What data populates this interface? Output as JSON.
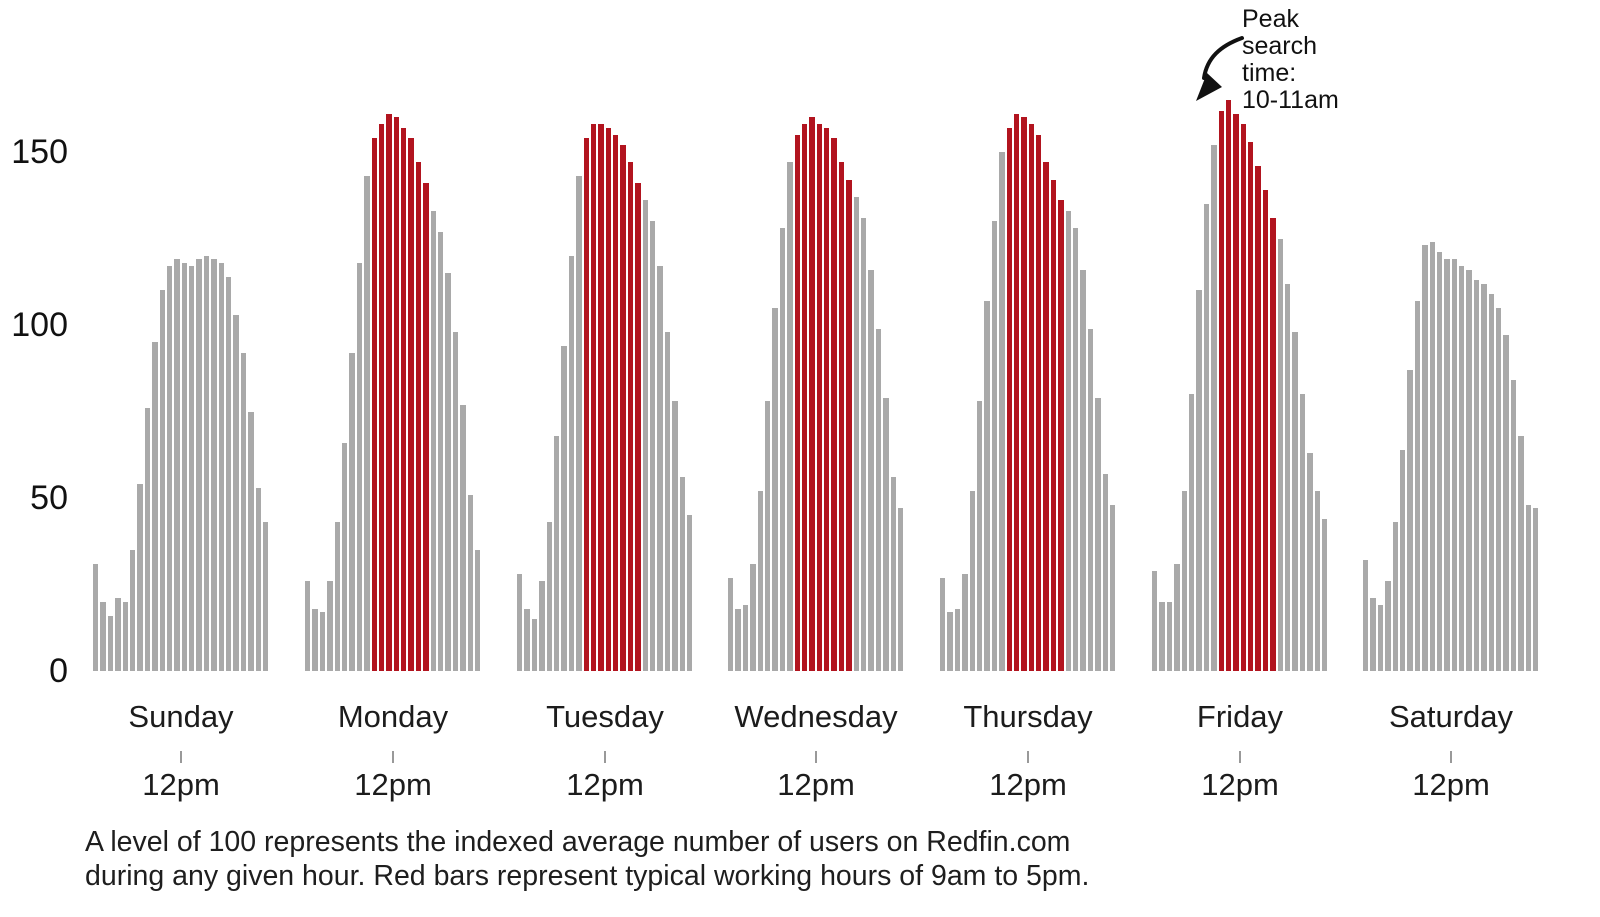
{
  "annotation": {
    "text": "Peak search time: 10-11am",
    "lines": [
      "Peak",
      "search",
      "time:",
      "10-11am"
    ]
  },
  "footnote": {
    "line1": "A level of 100 represents the indexed average number of users on Redfin.com",
    "line2": "during any given hour. Red bars represent typical working hours of 9am to 5pm."
  },
  "y_axis": {
    "tick_labels": [
      "150",
      "100",
      "50",
      "0"
    ],
    "tick_values": [
      150,
      100,
      50,
      0
    ]
  },
  "x_axis": {
    "noon_label": "12pm",
    "day_labels": [
      "Sunday",
      "Monday",
      "Tuesday",
      "Wednesday",
      "Thursday",
      "Friday",
      "Saturday"
    ]
  },
  "colors": {
    "bar_gray": "#a9a9a9",
    "bar_red": "#b2141f",
    "text": "#111111"
  },
  "chart_data": {
    "type": "bar",
    "title": "",
    "xlabel": "",
    "ylabel": "",
    "ylim": [
      0,
      165
    ],
    "y_ticks": [
      0,
      50,
      100,
      150
    ],
    "grid": false,
    "legend": false,
    "hours_per_day": 24,
    "red_hours_range": [
      9,
      16
    ],
    "red_bars_meaning": "typical working hours of 9am to 5pm",
    "value_meaning": "indexed average number of users on Redfin.com per hour (100 = average)",
    "peak_note": "Peak search time: 10-11am (Friday)",
    "days": [
      {
        "name": "Sunday",
        "has_red": false,
        "values": [
          31,
          20,
          16,
          21,
          20,
          35,
          54,
          76,
          95,
          110,
          117,
          119,
          118,
          117,
          119,
          120,
          119,
          118,
          114,
          103,
          92,
          75,
          53,
          43
        ]
      },
      {
        "name": "Monday",
        "has_red": true,
        "values": [
          26,
          18,
          17,
          26,
          43,
          66,
          92,
          118,
          143,
          154,
          158,
          161,
          160,
          157,
          154,
          147,
          141,
          133,
          127,
          115,
          98,
          77,
          51,
          35
        ]
      },
      {
        "name": "Tuesday",
        "has_red": true,
        "values": [
          28,
          18,
          15,
          26,
          43,
          68,
          94,
          120,
          143,
          154,
          158,
          158,
          157,
          155,
          152,
          147,
          141,
          136,
          130,
          117,
          98,
          78,
          56,
          45
        ]
      },
      {
        "name": "Wednesday",
        "has_red": true,
        "values": [
          27,
          18,
          19,
          31,
          52,
          78,
          105,
          128,
          147,
          155,
          158,
          160,
          158,
          157,
          154,
          147,
          142,
          137,
          131,
          116,
          99,
          79,
          56,
          47
        ]
      },
      {
        "name": "Thursday",
        "has_red": true,
        "values": [
          27,
          17,
          18,
          28,
          52,
          78,
          107,
          130,
          150,
          157,
          161,
          160,
          158,
          155,
          147,
          142,
          136,
          133,
          128,
          116,
          99,
          79,
          57,
          48
        ]
      },
      {
        "name": "Friday",
        "has_red": true,
        "values": [
          29,
          20,
          20,
          31,
          52,
          80,
          110,
          135,
          152,
          162,
          165,
          161,
          158,
          153,
          146,
          139,
          131,
          125,
          112,
          98,
          80,
          63,
          52,
          44
        ]
      },
      {
        "name": "Saturday",
        "has_red": false,
        "values": [
          32,
          21,
          19,
          26,
          43,
          64,
          87,
          107,
          123,
          124,
          121,
          119,
          119,
          117,
          116,
          113,
          112,
          109,
          105,
          97,
          84,
          68,
          48,
          47
        ]
      }
    ]
  }
}
